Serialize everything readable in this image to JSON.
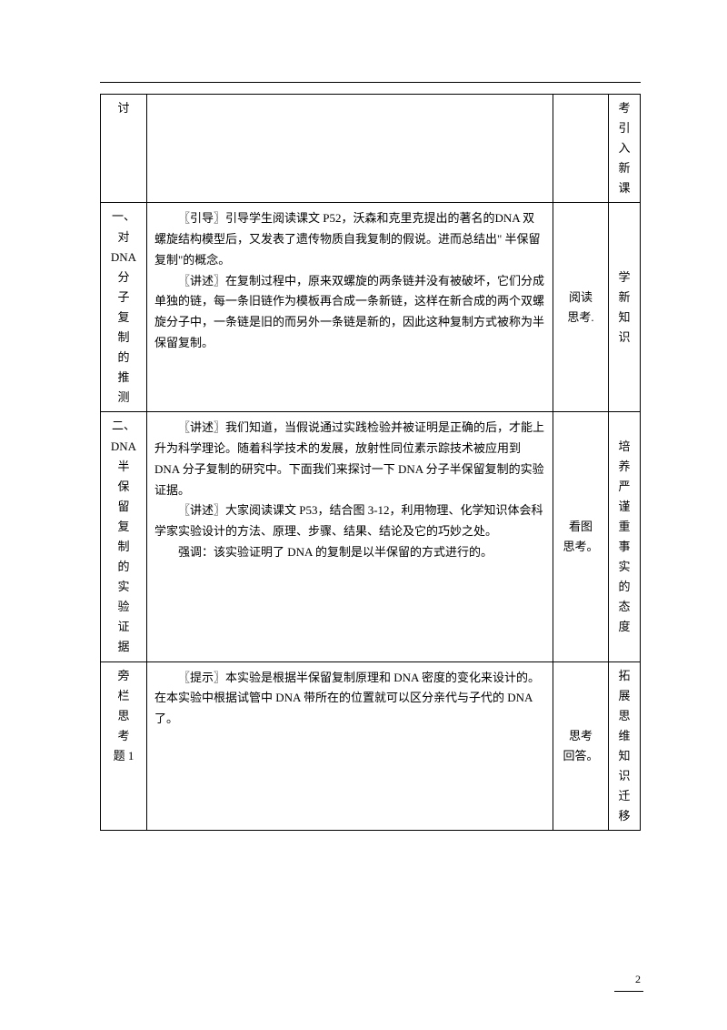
{
  "table": {
    "rows": [
      {
        "col1_lines": [
          "讨"
        ],
        "col2_paras": [],
        "col3_lines": [],
        "col4_lines": [
          "考",
          "引",
          "入",
          "新",
          "课"
        ]
      },
      {
        "col1_lines": [
          "一、",
          "对",
          "DNA",
          "分",
          "子",
          "复",
          "制",
          "的",
          "推",
          "测"
        ],
        "col2_paras": [
          "〖引导〗引导学生阅读课文 P52，沃森和克里克提出的著名的DNA 双螺旋结构模型后，又发表了遗传物质自我复制的假说。进而总结出\" 半保留复制\"的概念。",
          "〖讲述〗在复制过程中，原来双螺旋的两条链并没有被破坏，它们分成单独的链，每一条旧链作为模板再合成一条新链，这样在新合成的两个双螺旋分子中，一条链是旧的而另外一条链是新的，因此这种复制方式被称为半保留复制。"
        ],
        "col3_lines": [
          "阅读",
          "思考."
        ],
        "col4_lines": [
          "学",
          "新",
          "知",
          "识"
        ]
      },
      {
        "col1_lines": [
          "二、",
          "DNA",
          "半",
          "保",
          "留",
          "复",
          "制",
          "的",
          "实",
          "验",
          "证",
          "据"
        ],
        "col2_paras": [
          "〖讲述〗我们知道，当假说通过实践检验并被证明是正确的后，才能上升为科学理论。随着科学技术的发展，放射性同位素示踪技术被应用到 DNA 分子复制的研究中。下面我们来探讨一下 DNA 分子半保留复制的实验证据。",
          "〖讲述〗大家阅读课文 P53，结合图 3-12，利用物理、化学知识体会科学家实验设计的方法、原理、步骤、结果、结论及它的巧妙之处。",
          "强调：该实验证明了 DNA 的复制是以半保留的方式进行的。"
        ],
        "col3_lines": [
          "看图",
          "思考。"
        ],
        "col4_lines": [
          "培",
          "养",
          "严",
          "谨",
          "重",
          "事",
          "实",
          "的",
          "态",
          "度"
        ]
      },
      {
        "col1_lines": [
          "旁",
          "栏",
          "思",
          "考",
          "题 1"
        ],
        "col2_paras": [
          "〖提示〗本实验是根据半保留复制原理和 DNA 密度的变化来设计的。在本实验中根据试管中 DNA 带所在的位置就可以区分亲代与子代的 DNA 了。"
        ],
        "col3_lines": [
          "思考",
          "回答。"
        ],
        "col4_lines": [
          "拓",
          "展",
          "思",
          "维",
          "知",
          "识",
          "迁",
          "移"
        ]
      }
    ]
  },
  "pageNumber": "2"
}
